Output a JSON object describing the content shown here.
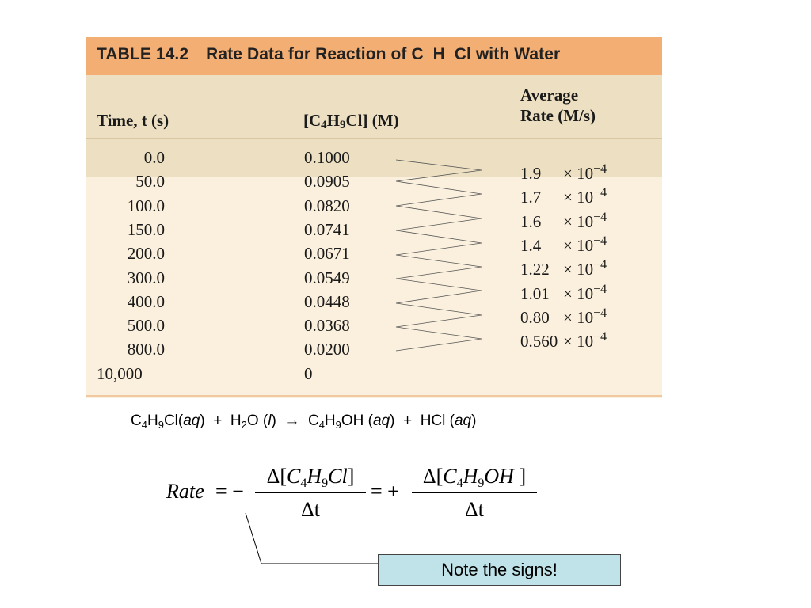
{
  "table": {
    "caption_number": "TABLE 14.2",
    "caption_text": "Rate Data for Reaction of C  H  Cl with Water",
    "headers": {
      "time": "Time, t (s)",
      "conc_open": "[C",
      "conc_sub1": "4",
      "conc_mid": "H",
      "conc_sub2": "9",
      "conc_close": "Cl] (M)",
      "rate_line1": "Average",
      "rate_line2": "Rate (M/s)"
    },
    "rows": [
      {
        "time": "0.0",
        "conc": "0.1000"
      },
      {
        "time": "50.0",
        "conc": "0.0905"
      },
      {
        "time": "100.0",
        "conc": "0.0820"
      },
      {
        "time": "150.0",
        "conc": "0.0741"
      },
      {
        "time": "200.0",
        "conc": "0.0671"
      },
      {
        "time": "300.0",
        "conc": "0.0549"
      },
      {
        "time": "400.0",
        "conc": "0.0448"
      },
      {
        "time": "500.0",
        "conc": "0.0368"
      },
      {
        "time": "800.0",
        "conc": "0.0200"
      },
      {
        "time": "10,000",
        "conc": "0"
      }
    ],
    "rates": [
      {
        "mantissa": "1.9",
        "times": "× 10",
        "exp": "−4"
      },
      {
        "mantissa": "1.7",
        "times": "× 10",
        "exp": "−4"
      },
      {
        "mantissa": "1.6",
        "times": "× 10",
        "exp": "−4"
      },
      {
        "mantissa": "1.4",
        "times": "× 10",
        "exp": "−4"
      },
      {
        "mantissa": "1.22",
        "times": "× 10",
        "exp": "−4"
      },
      {
        "mantissa": "1.01",
        "times": "× 10",
        "exp": "−4"
      },
      {
        "mantissa": "0.80",
        "times": "× 10",
        "exp": "−4"
      },
      {
        "mantissa": "0.560",
        "times": "× 10",
        "exp": "−4"
      }
    ]
  },
  "reaction": {
    "r1_a": "C",
    "r1_s1": "4",
    "r1_b": "H",
    "r1_s2": "9",
    "r1_c": "Cl(",
    "r1_state": "aq",
    "r1_d": ")",
    "plus1": "  +  ",
    "r2_a": "H",
    "r2_s1": "2",
    "r2_b": "O (",
    "r2_state": "l",
    "r2_c": ")",
    "arrow": "  →  ",
    "p1_a": "C",
    "p1_s1": "4",
    "p1_b": "H",
    "p1_s2": "9",
    "p1_c": "OH (",
    "p1_state": "aq",
    "p1_d": ")",
    "plus2": "  +  ",
    "p2_a": "HCl (",
    "p2_state": "aq",
    "p2_b": ")"
  },
  "rate_expression": {
    "lhs": "Rate",
    "eq_minus": "= −",
    "frac1_num_a": "Δ[",
    "frac1_num_c": "C",
    "frac1_num_s1": "4",
    "frac1_num_h": "H",
    "frac1_num_s2": "9",
    "frac1_num_rest": "Cl",
    "frac1_num_close": "]",
    "frac1_den": "Δt",
    "eq_plus": "= +",
    "frac2_num_a": "Δ[",
    "frac2_num_c": "C",
    "frac2_num_s1": "4",
    "frac2_num_h": "H",
    "frac2_num_s2": "9",
    "frac2_num_rest": "OH",
    "frac2_num_close": " ]",
    "frac2_den": "Δt"
  },
  "callout": {
    "text": "Note the signs!"
  }
}
